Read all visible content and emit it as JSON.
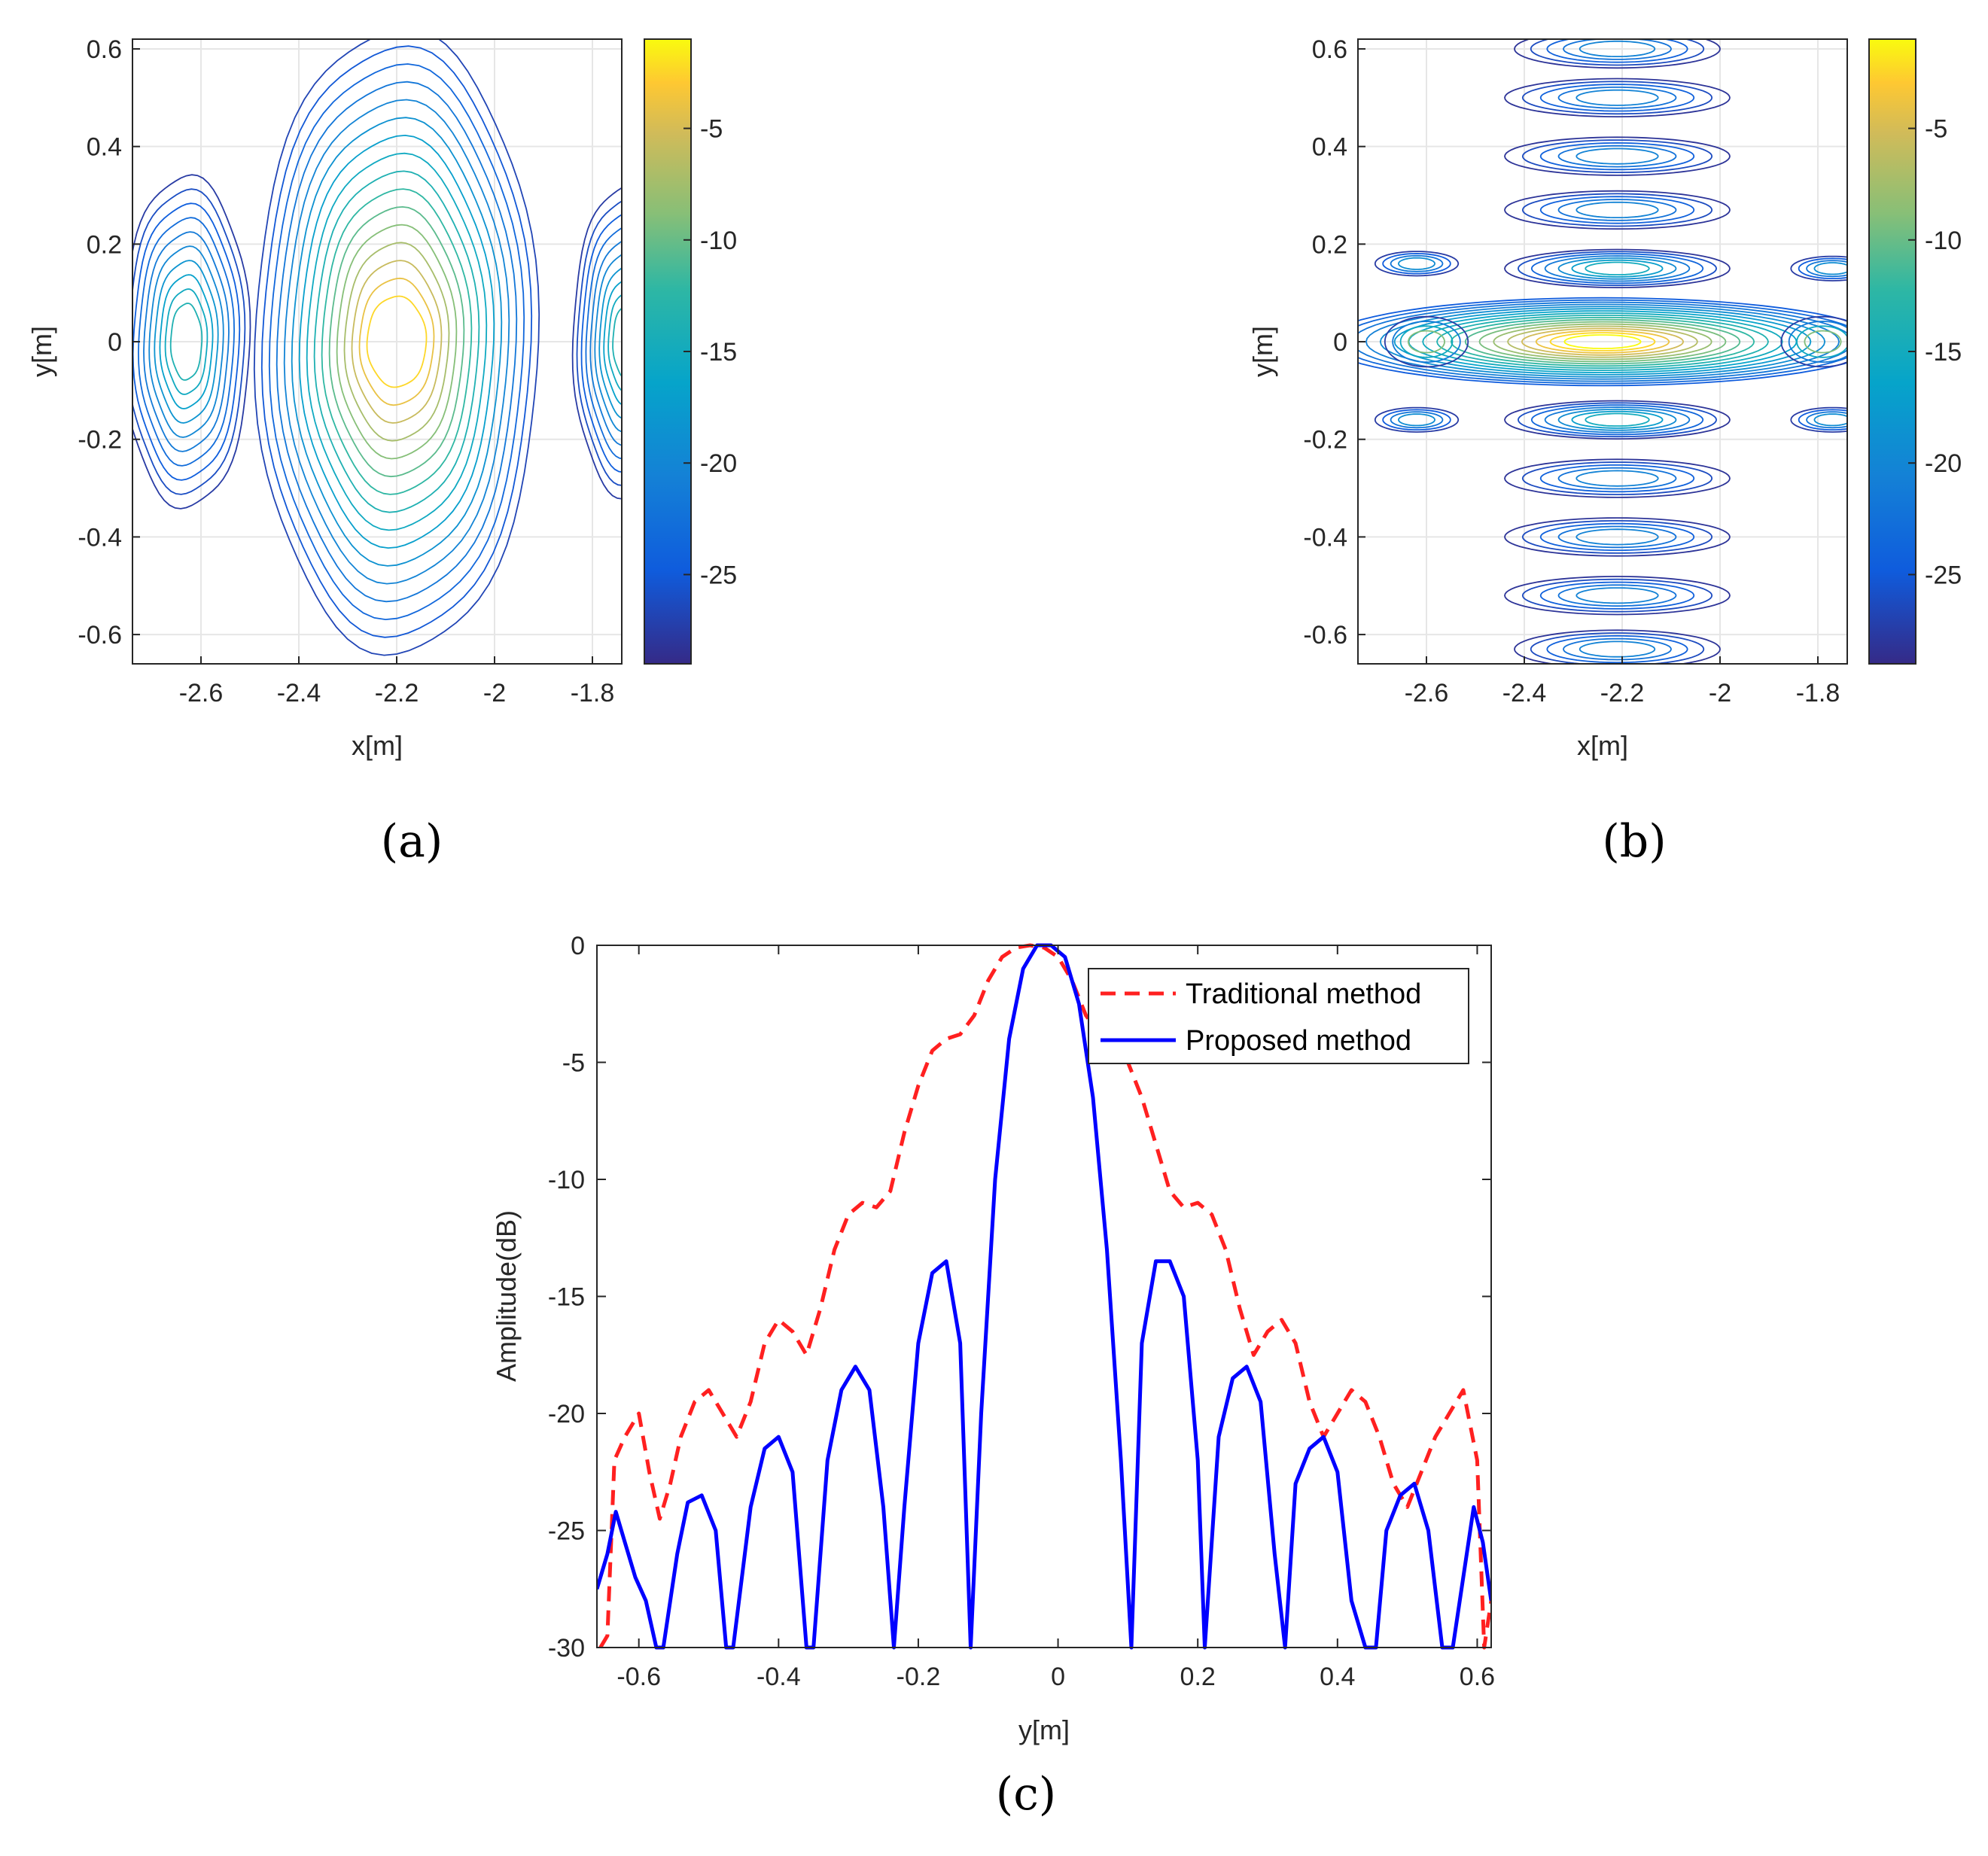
{
  "figure": {
    "panel_labels": [
      "(a)",
      "(b)",
      "(c)"
    ]
  },
  "chart_data": [
    {
      "panel": "(a)",
      "type": "contour",
      "xlabel": "x[m]",
      "ylabel": "y[m]",
      "xlim": [
        -2.74,
        -1.74
      ],
      "ylim": [
        -0.66,
        0.62
      ],
      "xticks": [
        "-2.6",
        "-2.4",
        "-2.2",
        "-2",
        "-1.8"
      ],
      "yticks": [
        "0.6",
        "0.4",
        "0.2",
        "0",
        "-0.2",
        "-0.4",
        "-0.6"
      ],
      "colorbar": {
        "range": [
          -29,
          -1
        ],
        "ticks": [
          "-5",
          "-10",
          "-15",
          "-20",
          "-25"
        ]
      },
      "description_values": {
        "peak_center": [
          -2.2,
          0.0
        ],
        "peak_db": -1
      }
    },
    {
      "panel": "(b)",
      "type": "contour",
      "xlabel": "x[m]",
      "ylabel": "y[m]",
      "xlim": [
        -2.74,
        -1.74
      ],
      "ylim": [
        -0.66,
        0.62
      ],
      "xticks": [
        "-2.6",
        "-2.4",
        "-2.2",
        "-2",
        "-1.8"
      ],
      "yticks": [
        "0.6",
        "0.4",
        "0.2",
        "0",
        "-0.2",
        "-0.4",
        "-0.6"
      ],
      "colorbar": {
        "range": [
          -29,
          -1
        ],
        "ticks": [
          "-5",
          "-10",
          "-15",
          "-20",
          "-25"
        ]
      },
      "sidelobe_rows_y": [
        0.6,
        0.5,
        0.38,
        0.27,
        0.15,
        -0.16,
        -0.28,
        -0.4,
        -0.52,
        -0.63
      ]
    },
    {
      "panel": "(c)",
      "type": "line",
      "xlabel": "y[m]",
      "ylabel": "Amplitude(dB)",
      "xlim": [
        -0.66,
        0.62
      ],
      "ylim": [
        -30,
        0
      ],
      "xticks": [
        "-0.6",
        "-0.4",
        "-0.2",
        "0",
        "0.2",
        "0.4",
        "0.6"
      ],
      "yticks": [
        "0",
        "-5",
        "-10",
        "-15",
        "-20",
        "-25",
        "-30"
      ],
      "legend_location": "top-right",
      "series": [
        {
          "name": "Traditional method",
          "color": "#ff2020",
          "style": "dashed",
          "x": [
            -0.655,
            -0.645,
            -0.635,
            -0.62,
            -0.6,
            -0.585,
            -0.57,
            -0.555,
            -0.54,
            -0.52,
            -0.5,
            -0.48,
            -0.46,
            -0.44,
            -0.42,
            -0.4,
            -0.38,
            -0.36,
            -0.34,
            -0.32,
            -0.3,
            -0.28,
            -0.26,
            -0.24,
            -0.22,
            -0.2,
            -0.18,
            -0.16,
            -0.14,
            -0.12,
            -0.1,
            -0.08,
            -0.06,
            -0.04,
            -0.02,
            0,
            0.02,
            0.04,
            0.06,
            0.08,
            0.1,
            0.12,
            0.14,
            0.16,
            0.18,
            0.2,
            0.22,
            0.24,
            0.26,
            0.28,
            0.3,
            0.32,
            0.34,
            0.36,
            0.38,
            0.4,
            0.42,
            0.44,
            0.46,
            0.48,
            0.5,
            0.52,
            0.54,
            0.56,
            0.58,
            0.6,
            0.61,
            0.62
          ],
          "values": [
            -30,
            -29.5,
            -22,
            -21,
            -20,
            -22.5,
            -24.5,
            -23,
            -21,
            -19.5,
            -19,
            -20,
            -21,
            -19.5,
            -17,
            -16,
            -16.5,
            -17.5,
            -15.5,
            -13,
            -11.5,
            -11,
            -11.2,
            -10.5,
            -8,
            -6,
            -4.5,
            -4,
            -3.8,
            -3,
            -1.5,
            -0.5,
            -0.1,
            0,
            -0.1,
            -0.5,
            -1.5,
            -3,
            -3.8,
            -4,
            -5,
            -6.5,
            -8.5,
            -10.5,
            -11.2,
            -11,
            -11.5,
            -13,
            -15.5,
            -17.5,
            -16.5,
            -16,
            -17,
            -19.5,
            -21,
            -20,
            -19,
            -19.5,
            -21,
            -23,
            -24,
            -22.5,
            -21,
            -20,
            -19,
            -22,
            -30,
            -28
          ]
        },
        {
          "name": "Proposed method",
          "color": "#0000ff",
          "style": "solid",
          "x": [
            -0.66,
            -0.645,
            -0.633,
            -0.62,
            -0.605,
            -0.59,
            -0.575,
            -0.565,
            -0.545,
            -0.53,
            -0.51,
            -0.49,
            -0.475,
            -0.465,
            -0.44,
            -0.42,
            -0.4,
            -0.38,
            -0.36,
            -0.35,
            -0.33,
            -0.31,
            -0.29,
            -0.27,
            -0.25,
            -0.235,
            -0.22,
            -0.2,
            -0.18,
            -0.16,
            -0.14,
            -0.125,
            -0.11,
            -0.09,
            -0.07,
            -0.05,
            -0.03,
            -0.01,
            0.01,
            0.03,
            0.05,
            0.07,
            0.09,
            0.105,
            0.12,
            0.14,
            0.16,
            0.18,
            0.2,
            0.21,
            0.23,
            0.25,
            0.27,
            0.29,
            0.31,
            0.325,
            0.34,
            0.36,
            0.38,
            0.4,
            0.42,
            0.44,
            0.455,
            0.47,
            0.49,
            0.51,
            0.53,
            0.55,
            0.565,
            0.58,
            0.595,
            0.608,
            0.62
          ],
          "values": [
            -27.5,
            -26,
            -24.2,
            -25.5,
            -27,
            -28,
            -30,
            -30,
            -26,
            -23.8,
            -23.5,
            -25,
            -30,
            -30,
            -24,
            -21.5,
            -21,
            -22.5,
            -30,
            -30,
            -22,
            -19,
            -18,
            -19,
            -24,
            -30,
            -24,
            -17,
            -14,
            -13.5,
            -17,
            -30,
            -20,
            -10,
            -4,
            -1,
            0,
            0,
            -0.5,
            -2.5,
            -6.5,
            -13,
            -22,
            -30,
            -17,
            -13.5,
            -13.5,
            -15,
            -22,
            -30,
            -21,
            -18.5,
            -18,
            -19.5,
            -26,
            -30,
            -23,
            -21.5,
            -21,
            -22.5,
            -28,
            -30,
            -30,
            -25,
            -23.5,
            -23,
            -25,
            -30,
            -30,
            -27,
            -24,
            -25.5,
            -28
          ]
        }
      ]
    }
  ]
}
